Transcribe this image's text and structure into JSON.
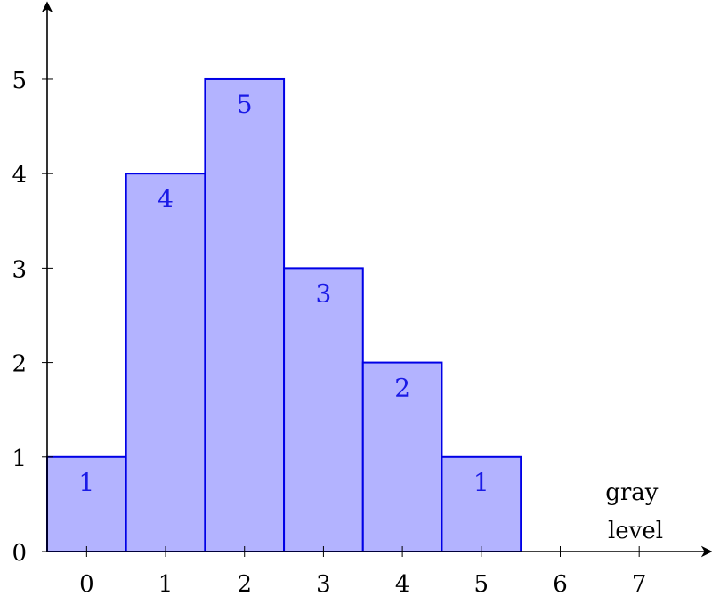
{
  "chart_data": {
    "type": "bar",
    "categories": [
      0,
      1,
      2,
      3,
      4,
      5
    ],
    "values": [
      1,
      4,
      5,
      3,
      2,
      1
    ],
    "bar_labels": [
      "1",
      "4",
      "5",
      "3",
      "2",
      "1"
    ],
    "x_ticks": [
      "0",
      "1",
      "2",
      "3",
      "4",
      "5",
      "6",
      "7"
    ],
    "y_ticks": [
      "0",
      "1",
      "2",
      "3",
      "4",
      "5"
    ],
    "xlabel_lines": [
      "gray",
      "level"
    ],
    "title": "",
    "ylabel": "",
    "xlim": [
      -0.5,
      7.9
    ],
    "ylim": [
      0,
      5.8
    ],
    "grid": false,
    "legend": "none",
    "colors": {
      "bar_fill": "#b3b3ff",
      "bar_stroke": "#0000e6",
      "label": "#1a1ae6"
    }
  }
}
